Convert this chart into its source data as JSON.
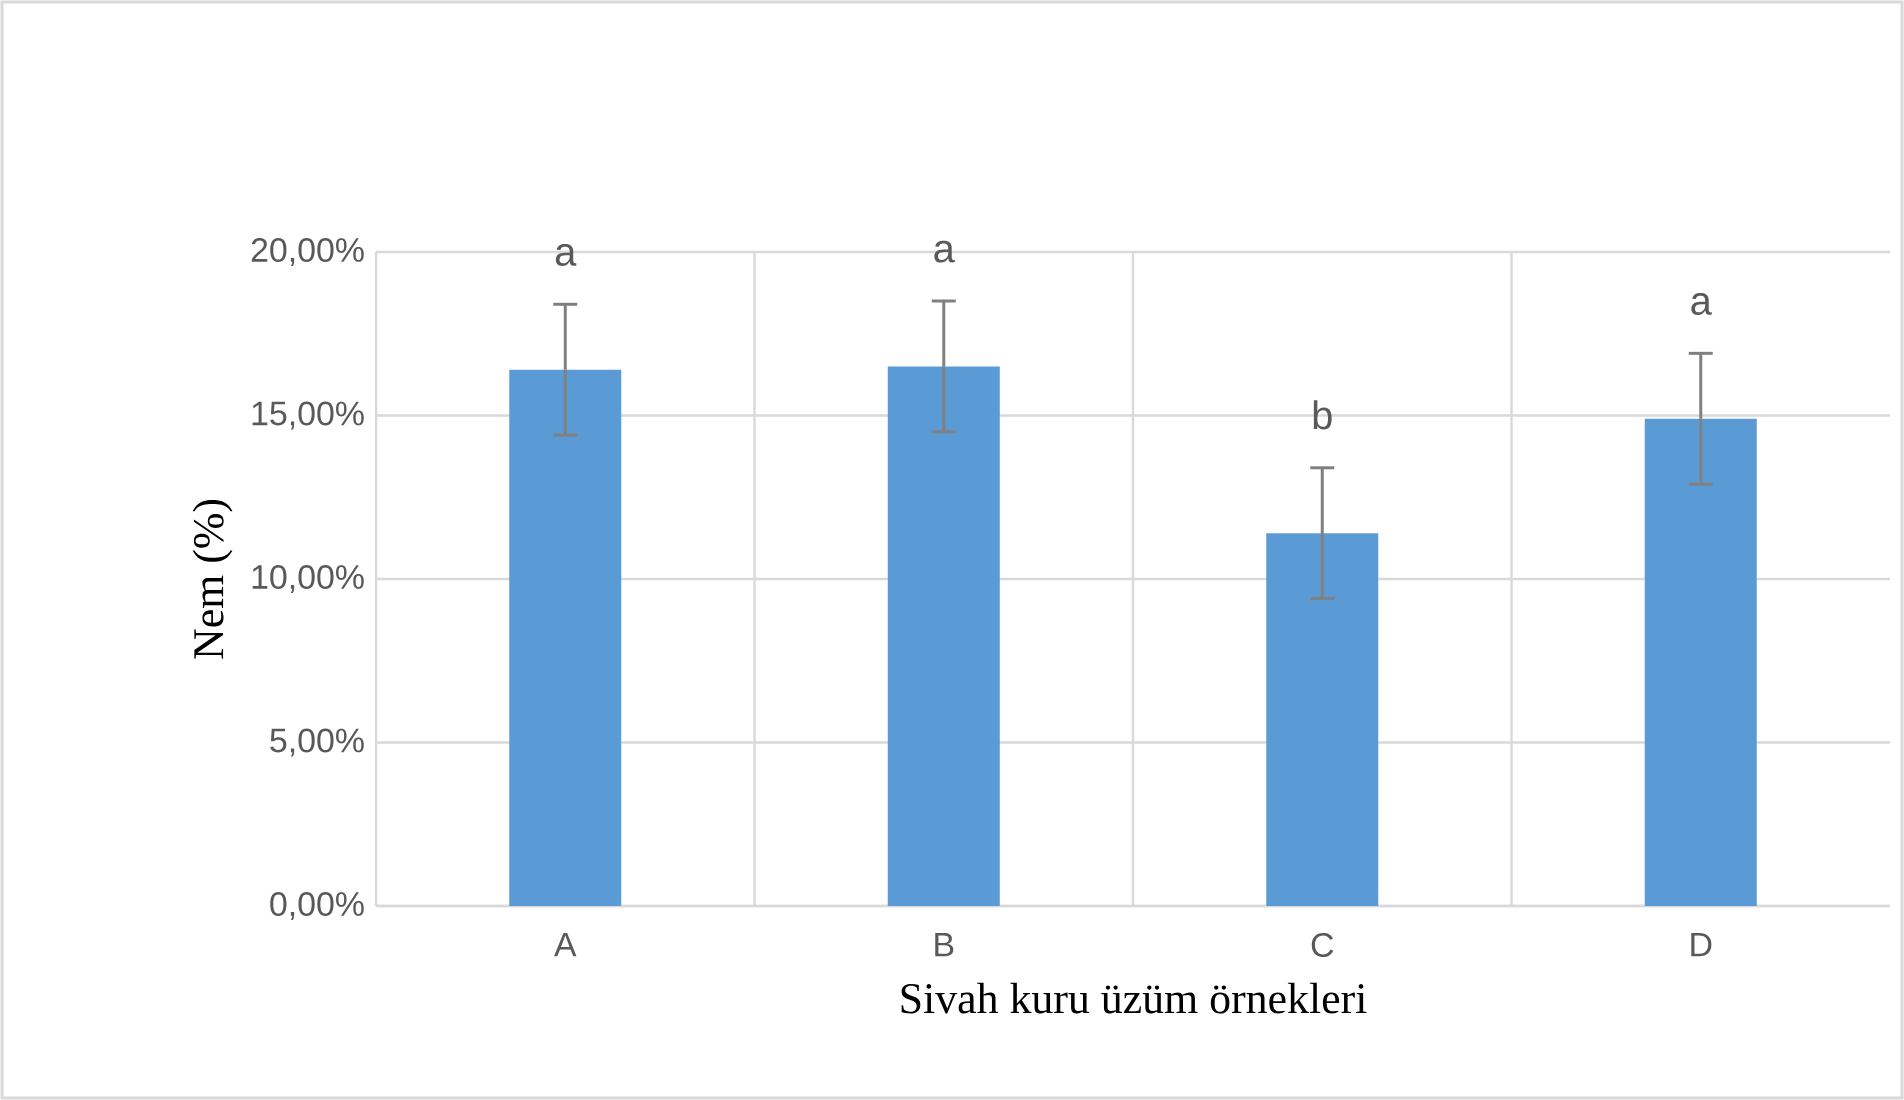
{
  "chart_data": {
    "type": "bar",
    "xlabel": "Sivah kuru üzüm örnekleri",
    "ylabel": "Nem (%)",
    "categories": [
      "A",
      "B",
      "C",
      "D"
    ],
    "values": [
      16.4,
      16.5,
      11.4,
      14.9
    ],
    "errors": [
      2.0,
      2.0,
      2.0,
      2.0
    ],
    "color": "#5b9bd5",
    "ylim": [
      0,
      20
    ],
    "yticks": [
      {
        "value": 0,
        "label": "0,00%"
      },
      {
        "value": 5,
        "label": "5,00%"
      },
      {
        "value": 10,
        "label": "10,00%"
      },
      {
        "value": 15,
        "label": "15,00%"
      },
      {
        "value": 20,
        "label": "20,00%"
      }
    ],
    "grid": true,
    "annotations": [
      "a",
      "a",
      "b",
      "a"
    ]
  }
}
